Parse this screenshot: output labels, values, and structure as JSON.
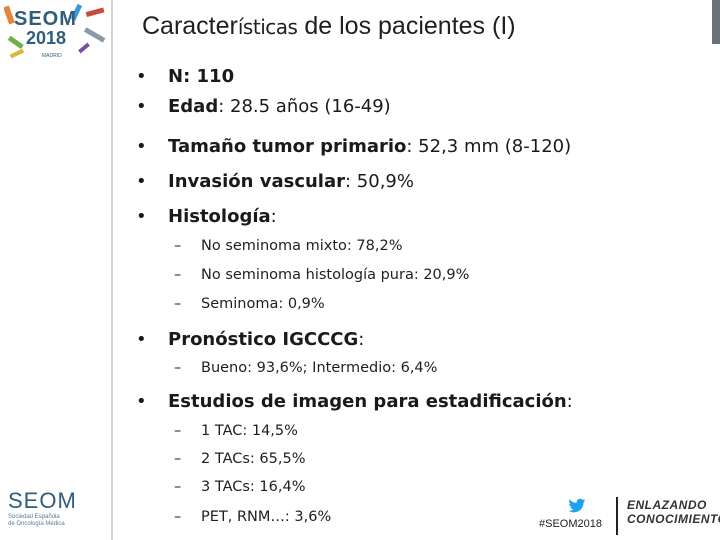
{
  "slide": {
    "title_a": "Caracter",
    "title_b": "ísticas",
    "title_c": " de los pacientes (I)",
    "items": [
      {
        "bold": "N: 110",
        "rest": ""
      },
      {
        "bold": "Edad",
        "rest": ": 28.5 años (16-49)"
      },
      {
        "bold": "Tamaño tumor primario",
        "rest": ": 52,3 mm (8-120)"
      },
      {
        "bold": "Invasión vascular",
        "rest": ": 50,9%"
      },
      {
        "bold": "Histología",
        "rest": ":"
      }
    ],
    "histologia": [
      "No seminoma mixto: 78,2%",
      "No seminoma histología pura: 20,9%",
      "Seminoma: 0,9%"
    ],
    "pronostico": {
      "bold": "Pronóstico IGCCCG",
      "rest": ":"
    },
    "pronostico_sub": [
      "Bueno: 93,6%;   Intermedio: 6,4%"
    ],
    "estudios": {
      "bold": "Estudios de imagen para estadificación",
      "rest": ":"
    },
    "estudios_sub": [
      "1 TAC: 14,5%",
      "2 TACs: 65,5%",
      "3 TACs: 16,4%",
      "PET, RNM…: 3,6%"
    ],
    "bullet_glyph": "•",
    "dash_glyph": "–"
  },
  "branding": {
    "top_logo_word": "SEOM",
    "top_logo_year": "2018",
    "top_logo_city": "MADRID",
    "bottom_logo_word": "SEOM",
    "bottom_logo_sub1": "Sociedad Española",
    "bottom_logo_sub2": "de Oncología Médica",
    "hashtag": "#SEOM2018",
    "tagline1": "ENLAZANDO",
    "tagline2": "CONOCIMIENTO",
    "colors": {
      "teal": "#2f5d7a",
      "grey": "#6c7378",
      "twitter": "#1da1f2"
    }
  }
}
